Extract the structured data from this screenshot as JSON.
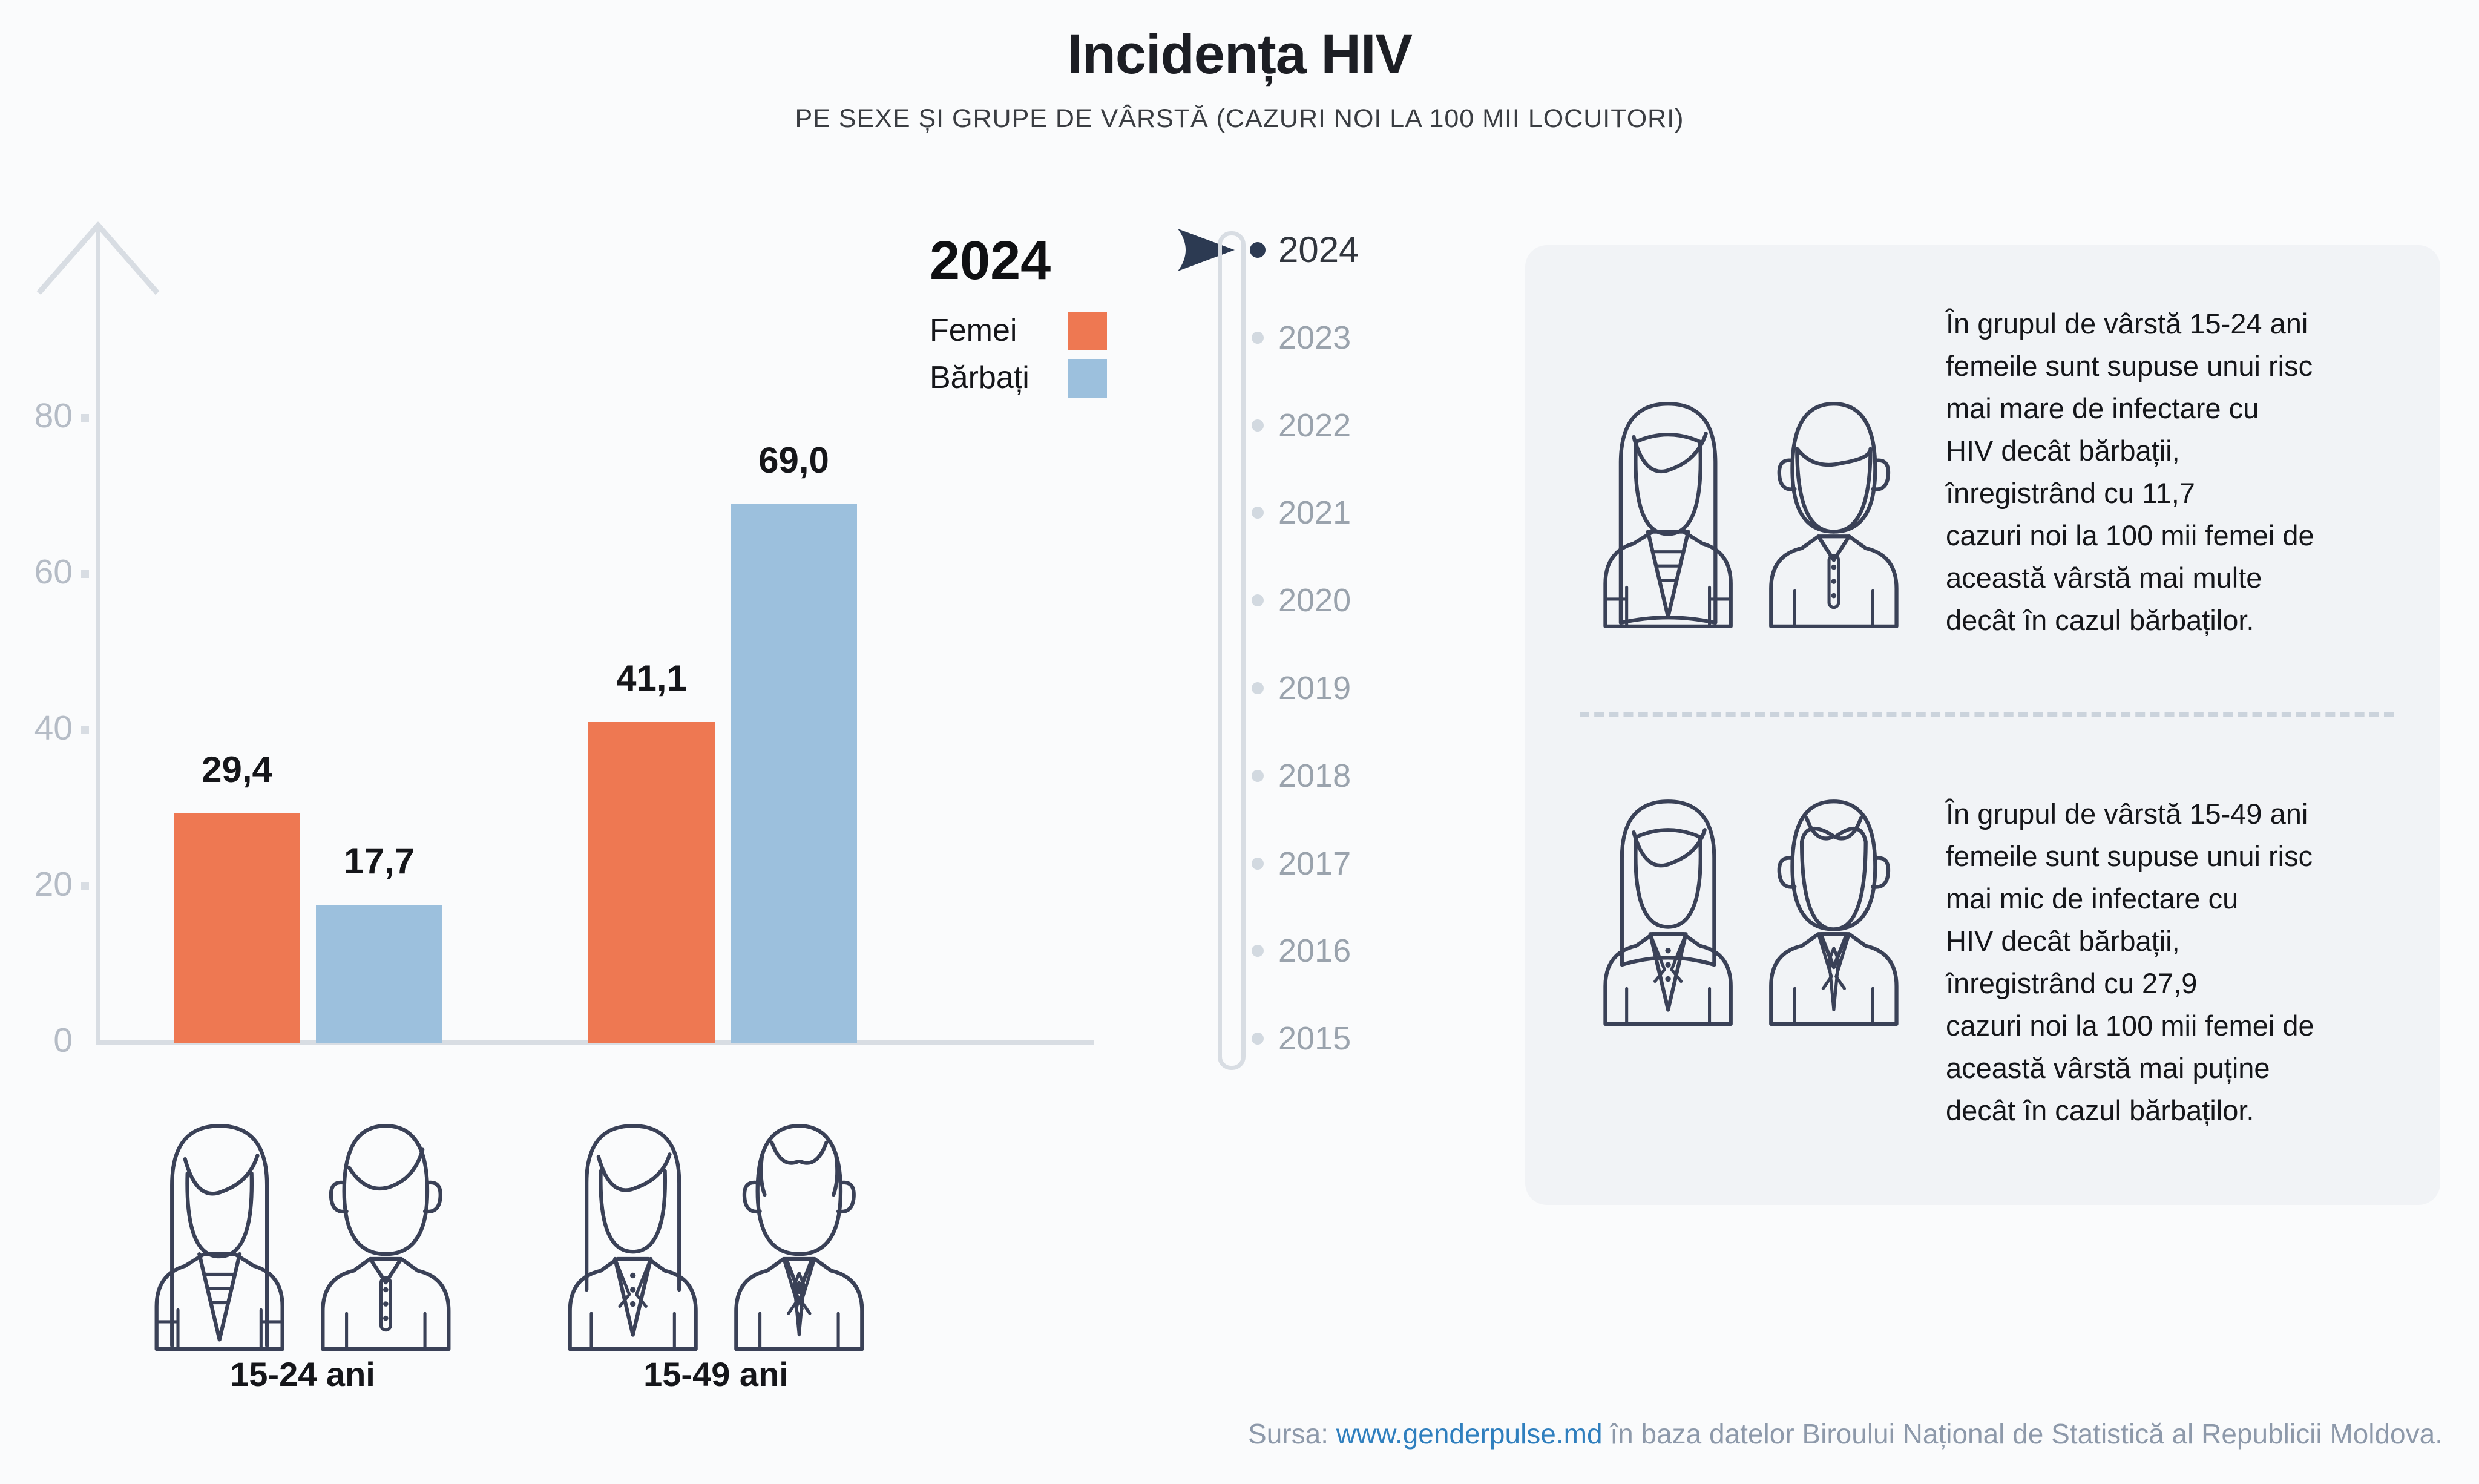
{
  "title": "Incidența HIV",
  "subtitle": "PE SEXE ȘI GRUPE DE VÂRSTĂ (CAZURI NOI LA 100 MII LOCUITORI)",
  "legend": {
    "year": "2024",
    "items": [
      {
        "label": "Femei",
        "color": "#EE7852"
      },
      {
        "label": "Bărbați",
        "color": "#9CC0DD"
      }
    ]
  },
  "chart_data": {
    "type": "bar",
    "title": "Incidența HIV",
    "subtitle": "PE SEXE ȘI GRUPE DE VÂRSTĂ (CAZURI NOI LA 100 MII LOCUITORI)",
    "categories": [
      "15-24 ani",
      "15-49 ani"
    ],
    "series": [
      {
        "name": "Femei",
        "values": [
          29.4,
          41.1
        ],
        "labels": [
          "29,4",
          "41,1"
        ],
        "color": "#EE7852"
      },
      {
        "name": "Bărbați",
        "values": [
          17.7,
          69.0
        ],
        "labels": [
          "17,7",
          "69,0"
        ],
        "color": "#9CC0DD"
      }
    ],
    "xlabel": "",
    "ylabel": "",
    "ylim": [
      0,
      100
    ],
    "yticks": [
      0,
      20,
      40,
      60,
      80
    ],
    "grid": false,
    "legend_position": "top-right"
  },
  "timeline": {
    "selected": "2024",
    "years": [
      "2024",
      "2023",
      "2022",
      "2021",
      "2020",
      "2019",
      "2018",
      "2017",
      "2016",
      "2015"
    ]
  },
  "panel": {
    "blocks": [
      {
        "text": "În grupul de vârstă 15-24 ani\nfemeile sunt supuse unui risc\nmai mare de infectare cu\n HIV decât bărbații,\n înregistrând cu 11,7\ncazuri noi la 100 mii femei de\naceastă vârstă mai multe\ndecât în cazul bărbaților."
      },
      {
        "text": "În grupul de vârstă 15-49 ani\nfemeile sunt supuse unui risc\nmai mic de infectare cu\n HIV decât bărbații,\n înregistrând cu 27,9\ncazuri noi la 100 mii femei de\naceastă vârstă mai puține\ndecât în cazul bărbaților."
      }
    ]
  },
  "footer": {
    "prefix": "Sursa: ",
    "link": "www.genderpulse.md",
    "suffix": " în baza datelor Biroului Național de Statistică al Republicii Moldova."
  },
  "colors": {
    "background": "#FAFBFC",
    "panel": "#F1F3F6",
    "orange": "#EE7852",
    "blue": "#9CC0DD",
    "navy": "#3A4157",
    "axis": "#D8DDE3",
    "tick_label": "#B5BCC6",
    "year_muted": "#9AA3AD",
    "year_selected": "#31363E",
    "dot_muted": "#D2D9E0",
    "dot_selected": "#2C3A52",
    "dash": "#CBD3DC",
    "text_dark": "#1C1E24",
    "footer_gray": "#8D99AA",
    "link_blue": "#2F7FBE",
    "hair_tan": "#CBA87E",
    "hair_blonde": "#F7CD6D",
    "blouse_blue": "#D6E0EB",
    "suit_blue": "#92B7D4",
    "shirt_white": "#FFFFFF"
  }
}
